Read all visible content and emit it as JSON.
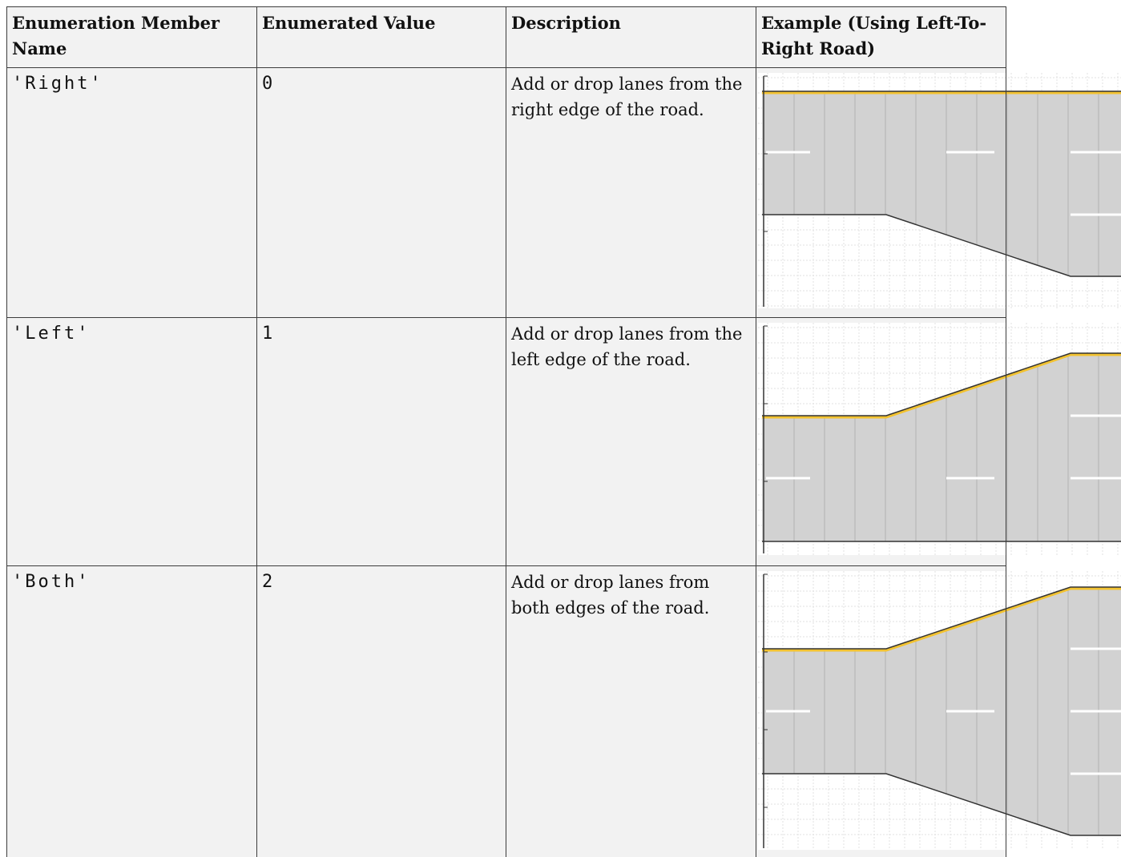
{
  "table": {
    "header": [
      "Enumeration Member Name",
      "Enumerated Value",
      "Description",
      "Example (Using Left-To-Right Road)"
    ],
    "rows": [
      [
        "'Right'",
        0,
        "Add or drop lanes from the right edge of the road."
      ],
      [
        "'Left'",
        1,
        "Add or drop lanes from the left edge of the road."
      ],
      [
        "'Both'",
        2,
        "Add or drop lanes from both edges of the road."
      ]
    ]
  }
}
